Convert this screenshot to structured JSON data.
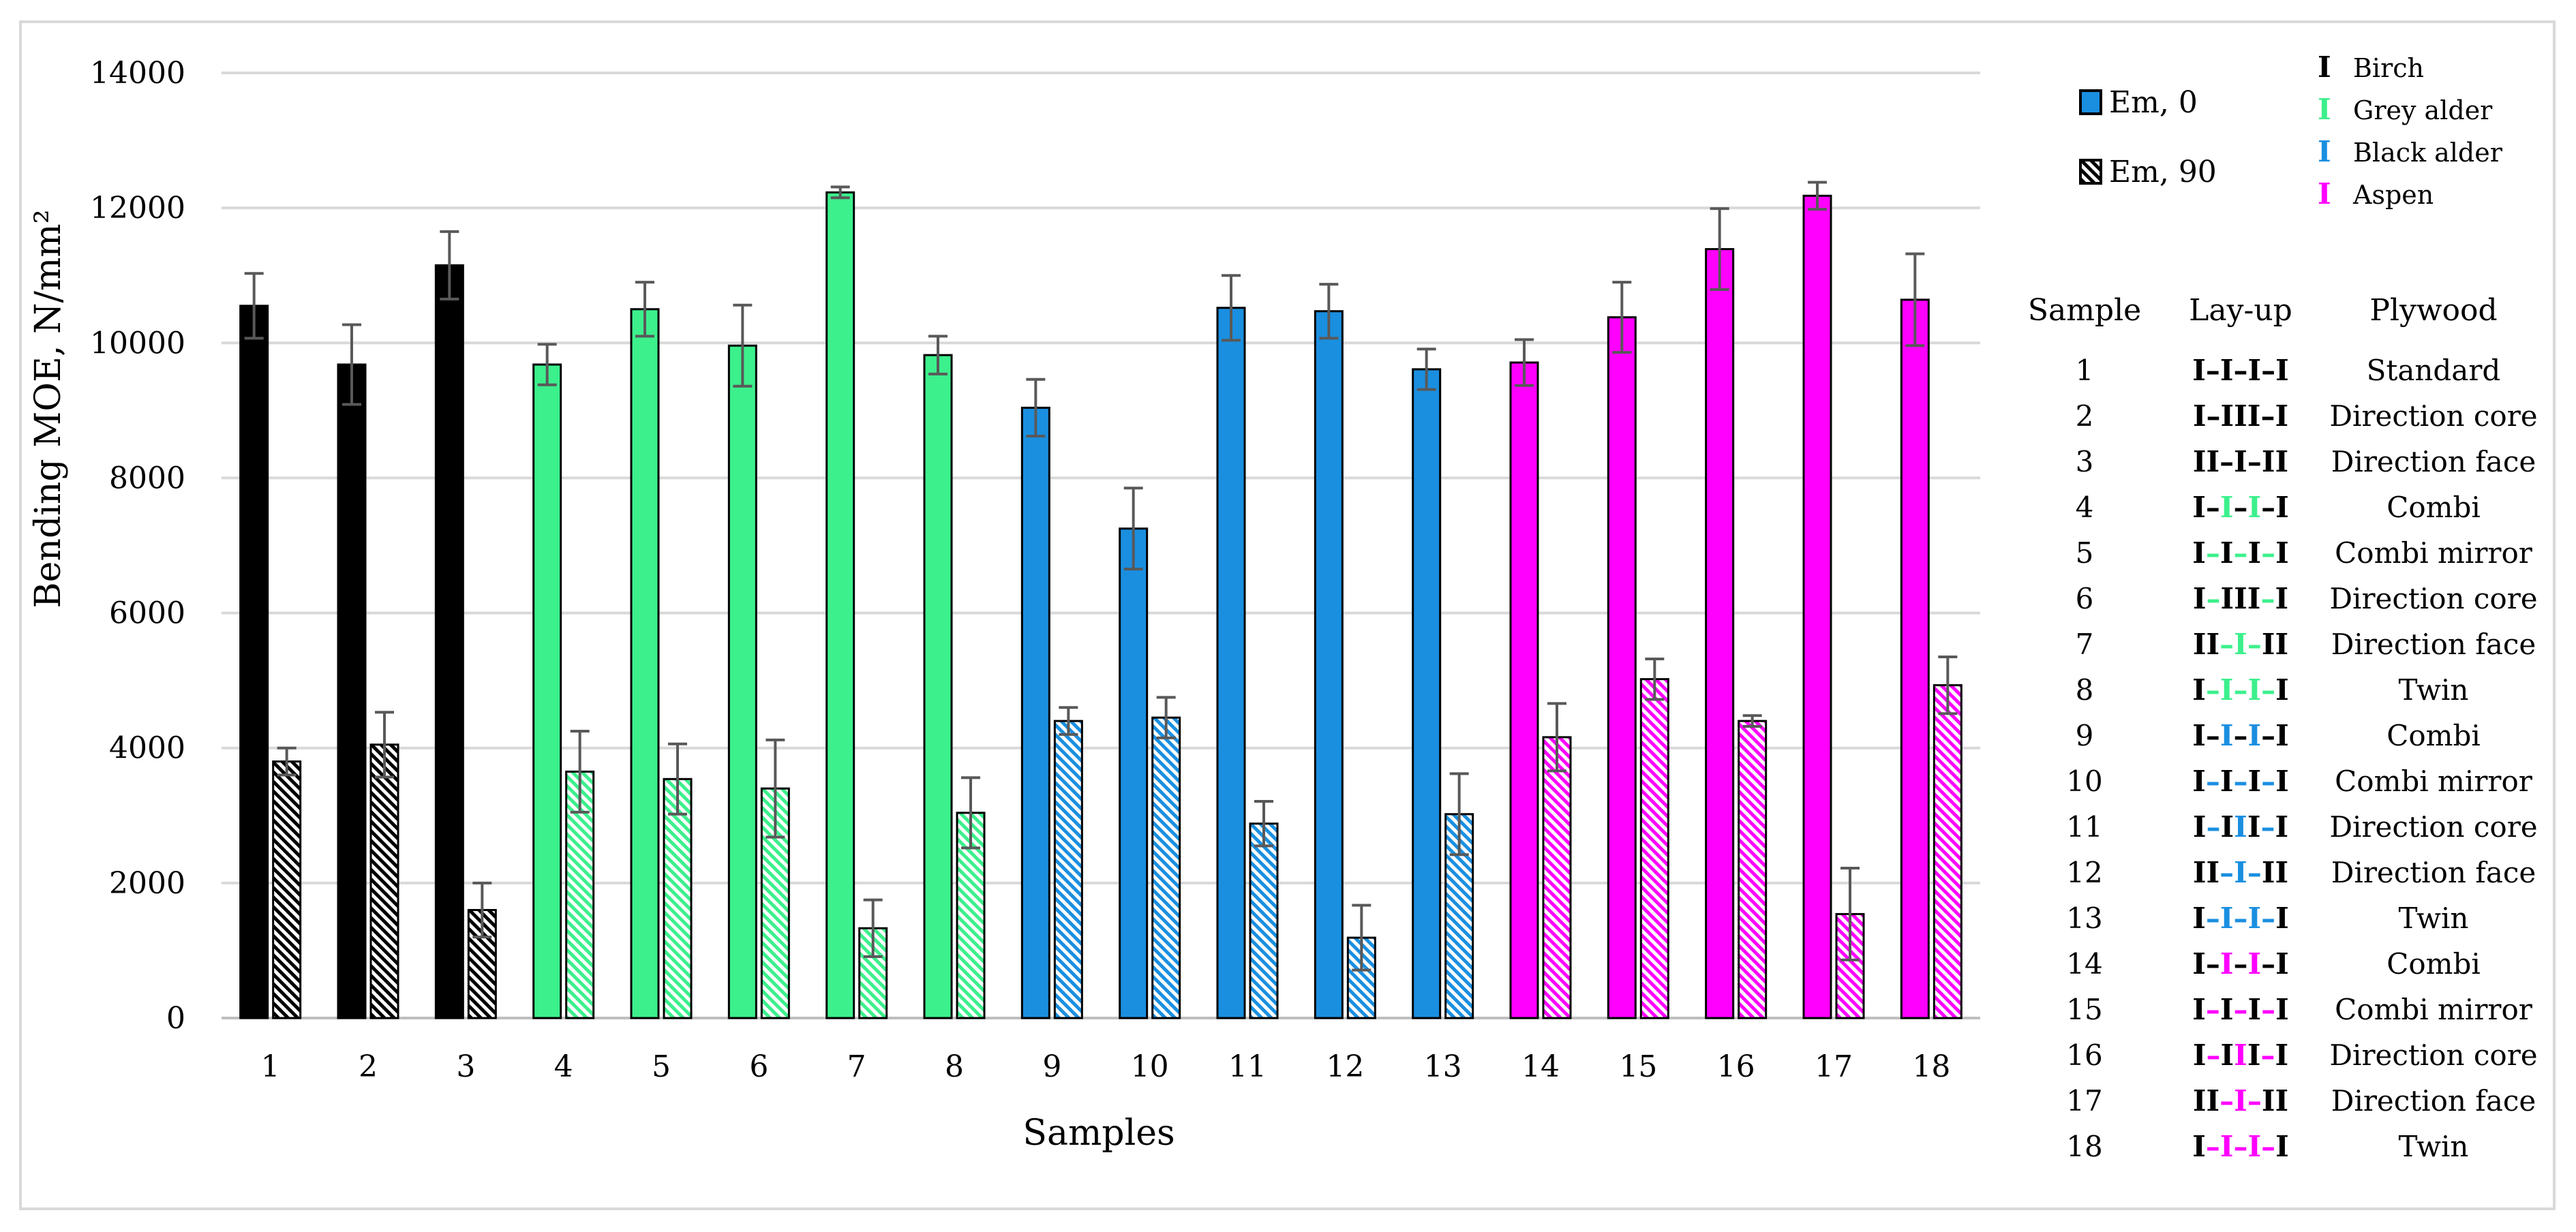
{
  "chart_data": {
    "type": "bar",
    "title": "",
    "xlabel": "Samples",
    "ylabel": "Bending MOE, N/mm²",
    "ylim": [
      0,
      14000
    ],
    "yticks": [
      0,
      2000,
      4000,
      6000,
      8000,
      10000,
      12000,
      14000
    ],
    "grid": "horizontal",
    "categories": [
      "1",
      "2",
      "3",
      "4",
      "5",
      "6",
      "7",
      "8",
      "9",
      "10",
      "11",
      "12",
      "13",
      "14",
      "15",
      "16",
      "17",
      "18"
    ],
    "series": [
      {
        "name": "Em, 0",
        "pattern": "solid",
        "values": [
          10550,
          9680,
          11150,
          9680,
          10500,
          9960,
          12230,
          9820,
          9040,
          7250,
          10520,
          10470,
          9610,
          9710,
          10380,
          11390,
          12180,
          10640
        ],
        "errors": [
          480,
          590,
          500,
          300,
          400,
          600,
          80,
          280,
          420,
          600,
          480,
          400,
          300,
          340,
          520,
          600,
          200,
          680
        ]
      },
      {
        "name": "Em, 90",
        "pattern": "hatched",
        "values": [
          3800,
          4050,
          1600,
          3650,
          3540,
          3400,
          1330,
          3040,
          4400,
          4450,
          2880,
          1190,
          3020,
          4160,
          5020,
          4400,
          1540,
          4930
        ],
        "errors": [
          200,
          480,
          400,
          600,
          520,
          720,
          420,
          520,
          200,
          300,
          330,
          480,
          600,
          500,
          300,
          80,
          680,
          420
        ]
      }
    ],
    "bar_colors": [
      "#000000",
      "#000000",
      "#000000",
      "#3cf08c",
      "#3cf08c",
      "#3cf08c",
      "#3cf08c",
      "#3cf08c",
      "#1a8fe0",
      "#1a8fe0",
      "#1a8fe0",
      "#1a8fe0",
      "#1a8fe0",
      "#ff00ff",
      "#ff00ff",
      "#ff00ff",
      "#ff00ff",
      "#ff00ff"
    ],
    "legend": {
      "placement": "right",
      "series_labels": [
        "Em, 0",
        "Em, 90"
      ],
      "species": [
        {
          "label": "Birch",
          "color": "#000000"
        },
        {
          "label": "Grey alder",
          "color": "#3cf08c"
        },
        {
          "label": "Black alder",
          "color": "#1a8fe0"
        },
        {
          "label": "Aspen",
          "color": "#ff00ff"
        }
      ]
    },
    "table": {
      "headers": [
        "Sample",
        "Lay-up",
        "Plywood"
      ],
      "rows": [
        {
          "sample": "1",
          "plywood": "Standard",
          "layup": [
            {
              "t": "I",
              "c": "k"
            },
            {
              "t": "–",
              "c": "k"
            },
            {
              "t": "I",
              "c": "k"
            },
            {
              "t": "–",
              "c": "k"
            },
            {
              "t": "I",
              "c": "k"
            },
            {
              "t": "–",
              "c": "k"
            },
            {
              "t": "I",
              "c": "k"
            }
          ]
        },
        {
          "sample": "2",
          "plywood": "Direction core",
          "layup": [
            {
              "t": "I",
              "c": "k"
            },
            {
              "t": "–",
              "c": "k"
            },
            {
              "t": "III",
              "c": "k"
            },
            {
              "t": "–",
              "c": "k"
            },
            {
              "t": "I",
              "c": "k"
            }
          ]
        },
        {
          "sample": "3",
          "plywood": "Direction face",
          "layup": [
            {
              "t": "II",
              "c": "k"
            },
            {
              "t": "–",
              "c": "k"
            },
            {
              "t": "I",
              "c": "k"
            },
            {
              "t": "–",
              "c": "k"
            },
            {
              "t": "II",
              "c": "k"
            }
          ]
        },
        {
          "sample": "4",
          "plywood": "Combi",
          "layup": [
            {
              "t": "I",
              "c": "k"
            },
            {
              "t": "–",
              "c": "k"
            },
            {
              "t": "I",
              "c": "g"
            },
            {
              "t": "–",
              "c": "k"
            },
            {
              "t": "I",
              "c": "g"
            },
            {
              "t": "–",
              "c": "k"
            },
            {
              "t": "I",
              "c": "k"
            }
          ]
        },
        {
          "sample": "5",
          "plywood": "Combi mirror",
          "layup": [
            {
              "t": "I",
              "c": "k"
            },
            {
              "t": "–",
              "c": "g"
            },
            {
              "t": "I",
              "c": "k"
            },
            {
              "t": "–",
              "c": "g"
            },
            {
              "t": "I",
              "c": "k"
            },
            {
              "t": "–",
              "c": "g"
            },
            {
              "t": "I",
              "c": "k"
            }
          ]
        },
        {
          "sample": "6",
          "plywood": "Direction core",
          "layup": [
            {
              "t": "I",
              "c": "k"
            },
            {
              "t": "–",
              "c": "g"
            },
            {
              "t": "III",
              "c": "k"
            },
            {
              "t": "–",
              "c": "g"
            },
            {
              "t": "I",
              "c": "k"
            }
          ]
        },
        {
          "sample": "7",
          "plywood": "Direction face",
          "layup": [
            {
              "t": "II",
              "c": "k"
            },
            {
              "t": "–",
              "c": "g"
            },
            {
              "t": "I",
              "c": "g"
            },
            {
              "t": "–",
              "c": "g"
            },
            {
              "t": "II",
              "c": "k"
            }
          ]
        },
        {
          "sample": "8",
          "plywood": "Twin",
          "layup": [
            {
              "t": "I",
              "c": "k"
            },
            {
              "t": "–",
              "c": "g"
            },
            {
              "t": "I",
              "c": "g"
            },
            {
              "t": "–",
              "c": "g"
            },
            {
              "t": "I",
              "c": "g"
            },
            {
              "t": "–",
              "c": "g"
            },
            {
              "t": "I",
              "c": "k"
            }
          ]
        },
        {
          "sample": "9",
          "plywood": "Combi",
          "layup": [
            {
              "t": "I",
              "c": "k"
            },
            {
              "t": "–",
              "c": "k"
            },
            {
              "t": "I",
              "c": "b"
            },
            {
              "t": "–",
              "c": "k"
            },
            {
              "t": "I",
              "c": "b"
            },
            {
              "t": "–",
              "c": "k"
            },
            {
              "t": "I",
              "c": "k"
            }
          ]
        },
        {
          "sample": "10",
          "plywood": "Combi mirror",
          "layup": [
            {
              "t": "I",
              "c": "k"
            },
            {
              "t": "–",
              "c": "b"
            },
            {
              "t": "I",
              "c": "k"
            },
            {
              "t": "–",
              "c": "b"
            },
            {
              "t": "I",
              "c": "k"
            },
            {
              "t": "–",
              "c": "b"
            },
            {
              "t": "I",
              "c": "k"
            }
          ]
        },
        {
          "sample": "11",
          "plywood": "Direction core",
          "layup": [
            {
              "t": "I",
              "c": "k"
            },
            {
              "t": "–",
              "c": "b"
            },
            {
              "t": "I",
              "c": "k"
            },
            {
              "t": "I",
              "c": "b"
            },
            {
              "t": "I",
              "c": "k"
            },
            {
              "t": "–",
              "c": "b"
            },
            {
              "t": "I",
              "c": "k"
            }
          ]
        },
        {
          "sample": "12",
          "plywood": "Direction face",
          "layup": [
            {
              "t": "II",
              "c": "k"
            },
            {
              "t": "–",
              "c": "b"
            },
            {
              "t": "I",
              "c": "b"
            },
            {
              "t": "–",
              "c": "b"
            },
            {
              "t": "II",
              "c": "k"
            }
          ]
        },
        {
          "sample": "13",
          "plywood": "Twin",
          "layup": [
            {
              "t": "I",
              "c": "k"
            },
            {
              "t": "–",
              "c": "b"
            },
            {
              "t": "I",
              "c": "b"
            },
            {
              "t": "–",
              "c": "b"
            },
            {
              "t": "I",
              "c": "b"
            },
            {
              "t": "–",
              "c": "b"
            },
            {
              "t": "I",
              "c": "k"
            }
          ]
        },
        {
          "sample": "14",
          "plywood": "Combi",
          "layup": [
            {
              "t": "I",
              "c": "k"
            },
            {
              "t": "–",
              "c": "k"
            },
            {
              "t": "I",
              "c": "m"
            },
            {
              "t": "–",
              "c": "k"
            },
            {
              "t": "I",
              "c": "m"
            },
            {
              "t": "–",
              "c": "k"
            },
            {
              "t": "I",
              "c": "k"
            }
          ]
        },
        {
          "sample": "15",
          "plywood": "Combi mirror",
          "layup": [
            {
              "t": "I",
              "c": "k"
            },
            {
              "t": "–",
              "c": "m"
            },
            {
              "t": "I",
              "c": "k"
            },
            {
              "t": "–",
              "c": "m"
            },
            {
              "t": "I",
              "c": "k"
            },
            {
              "t": "–",
              "c": "m"
            },
            {
              "t": "I",
              "c": "k"
            }
          ]
        },
        {
          "sample": "16",
          "plywood": "Direction core",
          "layup": [
            {
              "t": "I",
              "c": "k"
            },
            {
              "t": "–",
              "c": "m"
            },
            {
              "t": "I",
              "c": "k"
            },
            {
              "t": "I",
              "c": "m"
            },
            {
              "t": "I",
              "c": "k"
            },
            {
              "t": "–",
              "c": "m"
            },
            {
              "t": "I",
              "c": "k"
            }
          ]
        },
        {
          "sample": "17",
          "plywood": "Direction face",
          "layup": [
            {
              "t": "II",
              "c": "k"
            },
            {
              "t": "–",
              "c": "m"
            },
            {
              "t": "I",
              "c": "m"
            },
            {
              "t": "–",
              "c": "m"
            },
            {
              "t": "II",
              "c": "k"
            }
          ]
        },
        {
          "sample": "18",
          "plywood": "Twin",
          "layup": [
            {
              "t": "I",
              "c": "k"
            },
            {
              "t": "–",
              "c": "m"
            },
            {
              "t": "I",
              "c": "m"
            },
            {
              "t": "–",
              "c": "m"
            },
            {
              "t": "I",
              "c": "m"
            },
            {
              "t": "–",
              "c": "m"
            },
            {
              "t": "I",
              "c": "k"
            }
          ]
        }
      ],
      "color_key": {
        "k": "#000000",
        "g": "#3cf08c",
        "b": "#1a8fe0",
        "m": "#ff00ff"
      }
    }
  }
}
